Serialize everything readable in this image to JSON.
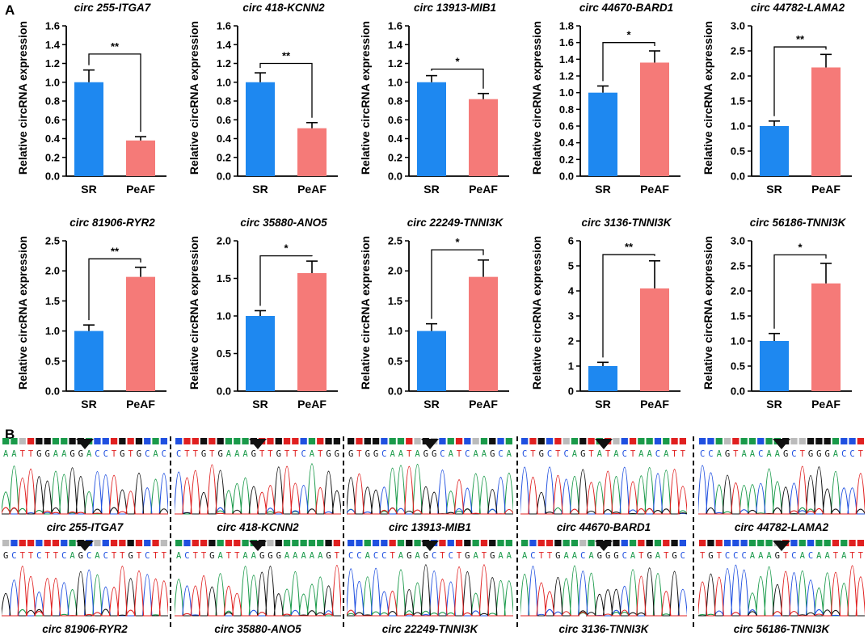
{
  "panel_a_label": "A",
  "panel_b_label": "B",
  "colors": {
    "sr": "#1e88f0",
    "peaf": "#f57a78",
    "axis": "#000000"
  },
  "chart_data": [
    {
      "type": "bar",
      "title": "circ 255-ITGA7",
      "ylabel": "Relative circRNA expression",
      "categories": [
        "SR",
        "PeAF"
      ],
      "values": [
        1.0,
        0.38
      ],
      "errors": [
        0.13,
        0.04
      ],
      "ylim": [
        0,
        1.6
      ],
      "yticks": [
        "0.0",
        "0.2",
        "0.4",
        "0.6",
        "0.8",
        "1.0",
        "1.2",
        "1.4",
        "1.6"
      ],
      "significance": "**",
      "bracket_y": 1.3
    },
    {
      "type": "bar",
      "title": "circ 418-KCNN2",
      "ylabel": "Relative circRNA expression",
      "categories": [
        "SR",
        "PeAF"
      ],
      "values": [
        1.0,
        0.51
      ],
      "errors": [
        0.1,
        0.06
      ],
      "ylim": [
        0,
        1.6
      ],
      "yticks": [
        "0.0",
        "0.2",
        "0.4",
        "0.6",
        "0.8",
        "1.0",
        "1.2",
        "1.4",
        "1.6"
      ],
      "significance": "**",
      "bracket_y": 1.2
    },
    {
      "type": "bar",
      "title": "circ 13913-MIB1",
      "ylabel": "Relative circRNA expression",
      "categories": [
        "SR",
        "PeAF"
      ],
      "values": [
        1.0,
        0.82
      ],
      "errors": [
        0.07,
        0.06
      ],
      "ylim": [
        0,
        1.6
      ],
      "yticks": [
        "0.0",
        "0.2",
        "0.4",
        "0.6",
        "0.8",
        "1.0",
        "1.2",
        "1.4",
        "1.6"
      ],
      "significance": "*",
      "bracket_y": 1.14
    },
    {
      "type": "bar",
      "title": "circ 44670-BARD1",
      "ylabel": "Relative circRNA expression",
      "categories": [
        "SR",
        "PeAF"
      ],
      "values": [
        1.0,
        1.36
      ],
      "errors": [
        0.08,
        0.14
      ],
      "ylim": [
        0,
        1.8
      ],
      "yticks": [
        "0.0",
        "0.2",
        "0.4",
        "0.6",
        "0.8",
        "1.0",
        "1.2",
        "1.4",
        "1.6",
        "1.8"
      ],
      "significance": "*",
      "bracket_y": 1.6
    },
    {
      "type": "bar",
      "title": "circ 44782-LAMA2",
      "ylabel": "Relative circRNA expression",
      "categories": [
        "SR",
        "PeAF"
      ],
      "values": [
        1.0,
        2.17
      ],
      "errors": [
        0.1,
        0.26
      ],
      "ylim": [
        0,
        3.0
      ],
      "yticks": [
        "0.0",
        "0.5",
        "1.0",
        "1.5",
        "2.0",
        "2.5",
        "3.0"
      ],
      "significance": "**",
      "bracket_y": 2.58
    },
    {
      "type": "bar",
      "title": "circ 81906-RYR2",
      "ylabel": "Relative circRNA expression",
      "categories": [
        "SR",
        "PeAF"
      ],
      "values": [
        1.0,
        1.9
      ],
      "errors": [
        0.1,
        0.16
      ],
      "ylim": [
        0,
        2.5
      ],
      "yticks": [
        "0.0",
        "0.5",
        "1.0",
        "1.5",
        "2.0",
        "2.5"
      ],
      "significance": "**",
      "bracket_y": 2.2
    },
    {
      "type": "bar",
      "title": "circ 35880-ANO5",
      "ylabel": "Relative circRNA expression",
      "categories": [
        "SR",
        "PeAF"
      ],
      "values": [
        1.0,
        1.57
      ],
      "errors": [
        0.07,
        0.16
      ],
      "ylim": [
        0,
        2.0
      ],
      "yticks": [
        "0.0",
        "0.5",
        "1.0",
        "1.5",
        "2.0"
      ],
      "significance": "*",
      "bracket_y": 1.8
    },
    {
      "type": "bar",
      "title": "circ 22249-TNNI3K",
      "ylabel": "Relative circRNA expression",
      "categories": [
        "SR",
        "PeAF"
      ],
      "values": [
        1.0,
        1.9
      ],
      "errors": [
        0.12,
        0.28
      ],
      "ylim": [
        0,
        2.5
      ],
      "yticks": [
        "0.0",
        "0.5",
        "1.0",
        "1.5",
        "2.0",
        "2.5"
      ],
      "significance": "*",
      "bracket_y": 2.35
    },
    {
      "type": "bar",
      "title": "circ 3136-TNNI3K",
      "ylabel": "Relative circRNA expression",
      "categories": [
        "SR",
        "PeAF"
      ],
      "values": [
        1.0,
        4.1
      ],
      "errors": [
        0.15,
        1.1
      ],
      "ylim": [
        0,
        6
      ],
      "yticks": [
        "0",
        "1",
        "2",
        "3",
        "4",
        "5",
        "6"
      ],
      "significance": "**",
      "bracket_y": 5.45
    },
    {
      "type": "bar",
      "title": "circ 56186-TNNI3K",
      "ylabel": "Relative circRNA expression",
      "categories": [
        "SR",
        "PeAF"
      ],
      "values": [
        1.0,
        2.15
      ],
      "errors": [
        0.15,
        0.4
      ],
      "ylim": [
        0,
        3.0
      ],
      "yticks": [
        "0.0",
        "0.5",
        "1.0",
        "1.5",
        "2.0",
        "2.5",
        "3.0"
      ],
      "significance": "*",
      "bracket_y": 2.72
    }
  ],
  "sequencing": [
    {
      "caption": "circ 255-ITGA7",
      "sequence": "AATTGGAAGGACCTGTGCAC"
    },
    {
      "caption": "circ 418-KCNN2",
      "sequence": "CTTGTGAAAGTTGTTCATGG"
    },
    {
      "caption": "circ 13913-MIB1",
      "sequence": "GTGGCAATAGGCATCAAGCA"
    },
    {
      "caption": "circ 44670-BARD1",
      "sequence": "CTGCTCAGTATACTAACATT"
    },
    {
      "caption": "circ 44782-LAMA2",
      "sequence": "CCAGTAACAAGCTGGGACCT"
    },
    {
      "caption": "circ 81906-RYR2",
      "sequence": "GCTTCTTCAGCACTTGTCTT"
    },
    {
      "caption": "circ 35880-ANO5",
      "sequence": "ACTTGATTAAGGGAAAAAGT"
    },
    {
      "caption": "circ 22249-TNNI3K",
      "sequence": "CCACCTAGAGCTCTGATGAA"
    },
    {
      "caption": "circ 3136-TNNI3K",
      "sequence": "ACTTGAACAGGGCATGATGC"
    },
    {
      "caption": "circ 56186-TNNI3K",
      "sequence": "TGTCCCAAAGTCACAATATT"
    }
  ],
  "base_colors": {
    "A": "#1a9a4a",
    "C": "#2050e0",
    "G": "#111111",
    "T": "#e02020"
  }
}
